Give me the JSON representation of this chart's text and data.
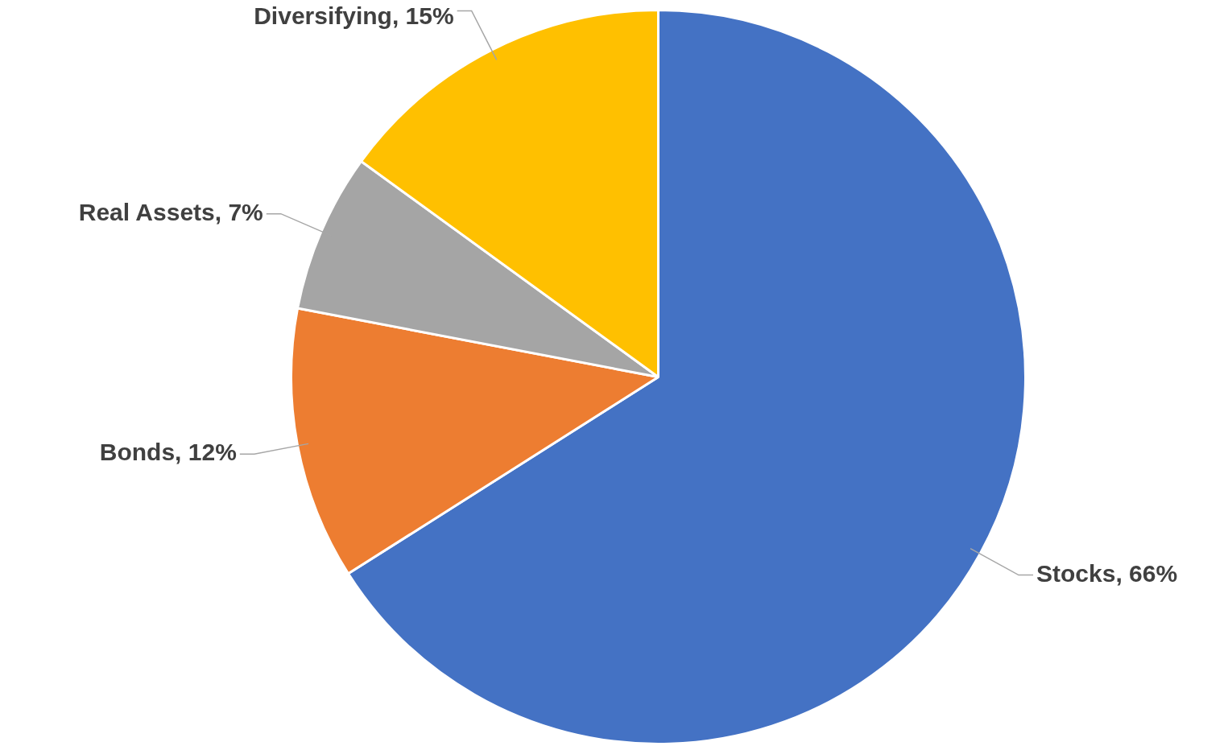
{
  "chart_data": {
    "type": "pie",
    "categories": [
      "Stocks",
      "Bonds",
      "Real Assets",
      "Diversifying"
    ],
    "values": [
      66,
      12,
      7,
      15
    ],
    "colors": [
      "#4472c4",
      "#ed7d31",
      "#a5a5a5",
      "#ffc000"
    ],
    "value_labels": [
      "66%",
      "12%",
      "7%",
      "15%"
    ],
    "legend": false
  }
}
